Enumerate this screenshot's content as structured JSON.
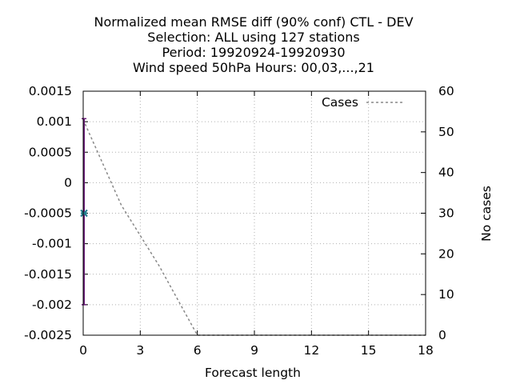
{
  "chart_data": {
    "type": "line",
    "title_lines": [
      "Normalized mean RMSE diff (90% conf) CTL - DEV",
      "Selection: ALL using   127 stations",
      "Period: 19920924-19920930",
      "Wind speed 50hPa   Hours:  00,03,...,21"
    ],
    "xlabel": "Forecast length",
    "ylabel": "",
    "y2label": "No cases",
    "xlim": [
      0,
      18
    ],
    "ylim": [
      -0.0025,
      0.0015
    ],
    "y2lim": [
      0,
      60
    ],
    "x_ticks": [
      "0",
      "3",
      "6",
      "9",
      "12",
      "15",
      "18"
    ],
    "y_ticks": [
      "0.0015",
      "0.001",
      "0.0005",
      "0",
      "-0.0005",
      "-0.001",
      "-0.0015",
      "-0.002",
      "-0.0025"
    ],
    "y2_ticks": [
      "60",
      "50",
      "40",
      "30",
      "20",
      "10",
      "0"
    ],
    "grid": true,
    "legend_position": "top-right",
    "series": [
      {
        "name": "Cases",
        "axis": "y2",
        "style": "dashed",
        "color": "#888888",
        "x": [
          0,
          2,
          4,
          6,
          9,
          12,
          15,
          18
        ],
        "y": [
          53,
          32,
          17,
          0,
          0,
          0,
          0,
          0
        ]
      },
      {
        "name": "",
        "axis": "y",
        "style": "errorbar",
        "color": "#6a1b7a",
        "x": [
          0
        ],
        "mean": [
          -0.0005
        ],
        "low": [
          -0.002
        ],
        "high": [
          0.00105
        ]
      }
    ],
    "marker_color": "#1f7a8c"
  }
}
